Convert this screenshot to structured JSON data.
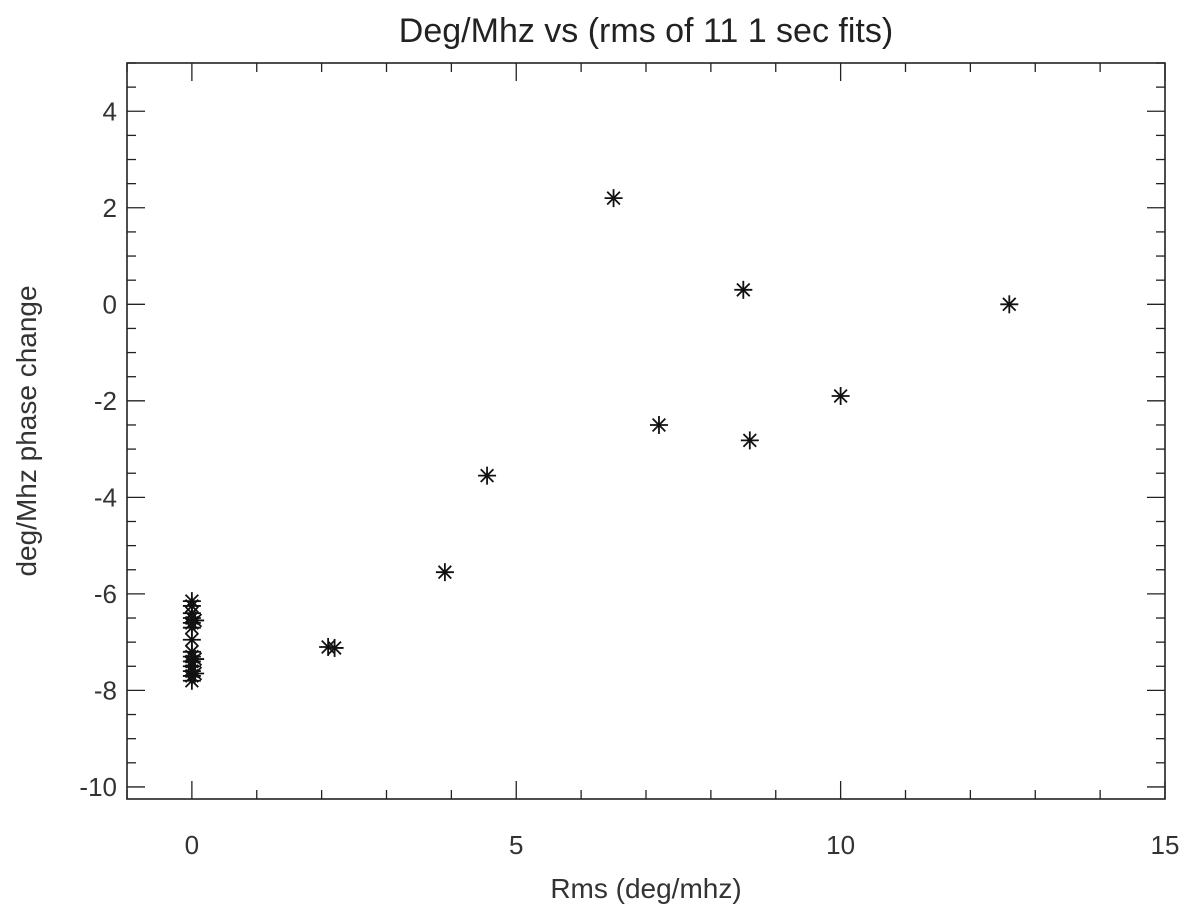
{
  "chart_data": {
    "type": "scatter",
    "title": "Deg/Mhz vs (rms of 11 1 sec fits)",
    "xlabel": "Rms (deg/mhz)",
    "ylabel": "deg/Mhz phase change",
    "xlim": [
      -1,
      15
    ],
    "ylim": [
      -10.25,
      5
    ],
    "x_ticks": [
      "0",
      "5",
      "10",
      "15"
    ],
    "x_tick_values": [
      0,
      5,
      10,
      15
    ],
    "y_ticks": [
      "-10",
      "-8",
      "-6",
      "-4",
      "-2",
      "0",
      "2",
      "4"
    ],
    "y_tick_values": [
      -10,
      -8,
      -6,
      -4,
      -2,
      0,
      2,
      4
    ],
    "marker": "asterisk",
    "grid": false,
    "points": [
      {
        "x": 0.0,
        "y": -6.15
      },
      {
        "x": 0.0,
        "y": -6.25
      },
      {
        "x": 0.0,
        "y": -6.4
      },
      {
        "x": 0.0,
        "y": -6.5
      },
      {
        "x": 0.0,
        "y": -6.6
      },
      {
        "x": 0.0,
        "y": -6.7
      },
      {
        "x": 0.0,
        "y": -6.95
      },
      {
        "x": 0.0,
        "y": -7.2
      },
      {
        "x": 0.0,
        "y": -7.3
      },
      {
        "x": 0.0,
        "y": -7.4
      },
      {
        "x": 0.0,
        "y": -7.5
      },
      {
        "x": 0.0,
        "y": -7.6
      },
      {
        "x": 0.0,
        "y": -7.7
      },
      {
        "x": 0.0,
        "y": -7.8
      },
      {
        "x": 0.05,
        "y": -6.55
      },
      {
        "x": 0.05,
        "y": -7.35
      },
      {
        "x": 0.05,
        "y": -7.65
      },
      {
        "x": 2.1,
        "y": -7.1
      },
      {
        "x": 2.2,
        "y": -7.12
      },
      {
        "x": 3.9,
        "y": -5.55
      },
      {
        "x": 4.55,
        "y": -3.55
      },
      {
        "x": 6.5,
        "y": 2.2
      },
      {
        "x": 7.2,
        "y": -2.5
      },
      {
        "x": 8.5,
        "y": 0.3
      },
      {
        "x": 8.6,
        "y": -2.82
      },
      {
        "x": 10.0,
        "y": -1.9
      },
      {
        "x": 12.6,
        "y": 0.0
      }
    ]
  }
}
